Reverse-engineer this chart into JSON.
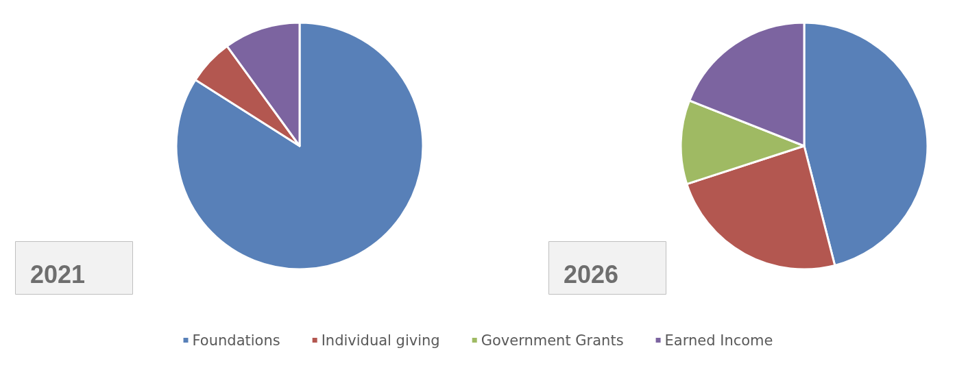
{
  "chart_data": [
    {
      "type": "pie",
      "title": "2021",
      "categories": [
        null,
        null,
        null,
        null
      ],
      "values": [
        84,
        6,
        0,
        10
      ],
      "colors": [
        "#5880b8",
        "#b35750",
        "#9fba63",
        "#7c64a0"
      ]
    },
    {
      "type": "pie",
      "title": "2026",
      "categories": [
        "Foundations",
        "Individual giving",
        "Government Grants",
        "Earned Income"
      ],
      "values": [
        46,
        24,
        11,
        19
      ],
      "colors": [
        "#5880b8",
        "#b35750",
        "#9fba63",
        "#7c64a0"
      ],
      "legend": "bottom"
    }
  ]
}
